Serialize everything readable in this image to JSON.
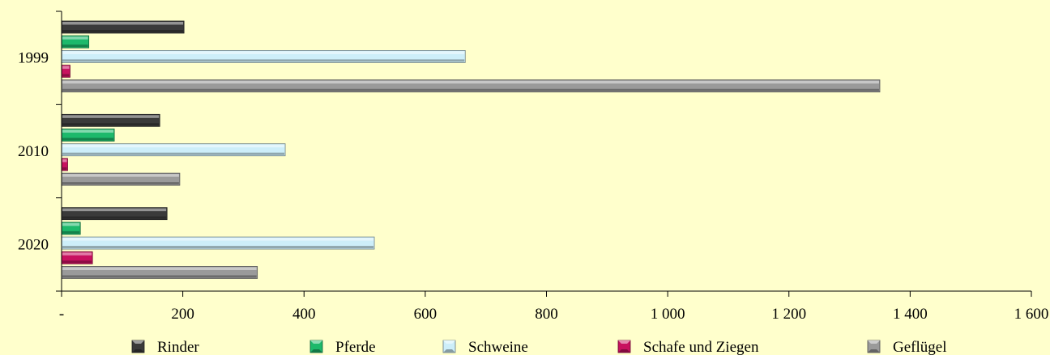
{
  "chart_data": {
    "type": "bar",
    "orientation": "horizontal",
    "categories": [
      "1999",
      "2010",
      "2020"
    ],
    "series": [
      {
        "name": "Rinder",
        "values": [
          202,
          162,
          174
        ],
        "color": "#3a3a3a"
      },
      {
        "name": "Pferde",
        "values": [
          45,
          87,
          31
        ],
        "color": "#1db96b"
      },
      {
        "name": "Schweine",
        "values": [
          666,
          369,
          516
        ],
        "color": "#cdeef9"
      },
      {
        "name": "Schafe und Ziegen",
        "values": [
          14,
          10,
          51
        ],
        "color": "#c8115f"
      },
      {
        "name": "Geflügel",
        "values": [
          1350,
          195,
          323
        ],
        "color": "#9a9a9a"
      }
    ],
    "xlim": [
      0,
      1600
    ],
    "xticks": [
      0,
      200,
      400,
      600,
      800,
      1000,
      1200,
      1400,
      1600
    ],
    "xtick_labels": [
      "-",
      "200",
      "400",
      "600",
      "800",
      "1 000",
      "1 200",
      "1 400",
      "1 600"
    ],
    "title": "",
    "xlabel": "",
    "ylabel": "",
    "legend_position": "bottom",
    "grid": false
  }
}
